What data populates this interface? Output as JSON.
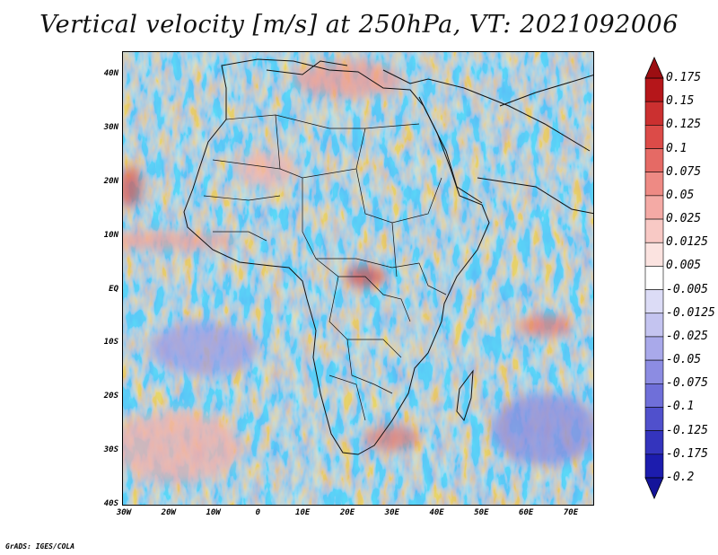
{
  "title": "Vertical velocity [m/s] at 250hPa, VT: 2021092006",
  "credit": "GrADS: IGES/COLA",
  "map": {
    "lat_labels": [
      "40N",
      "30N",
      "20N",
      "10N",
      "EQ",
      "10S",
      "20S",
      "30S",
      "40S"
    ],
    "lon_labels": [
      "30W",
      "20W",
      "10W",
      "0",
      "10E",
      "20E",
      "30E",
      "40E",
      "50E",
      "60E",
      "70E"
    ]
  },
  "colorbar": {
    "labels": [
      "0.175",
      "0.15",
      "0.125",
      "0.1",
      "0.075",
      "0.05",
      "0.025",
      "0.0125",
      "0.005",
      "-0.005",
      "-0.0125",
      "-0.025",
      "-0.05",
      "-0.075",
      "-0.1",
      "-0.125",
      "-0.175",
      "-0.2"
    ],
    "colors": [
      "#b5161a",
      "#cb3030",
      "#dc4b48",
      "#e56a65",
      "#ee8a84",
      "#f4aaa5",
      "#f8c9c5",
      "#fbe3e0",
      "#ffffff",
      "#dcdcf6",
      "#c4c4f0",
      "#a9a9ea",
      "#8c8ce2",
      "#6f6fd9",
      "#5050cc",
      "#3434bd",
      "#1c1cae"
    ],
    "arrow_top_color": "#9c0e12",
    "arrow_bottom_color": "#14149a"
  },
  "chart_data": {
    "type": "heatmap",
    "title": "Vertical velocity [m/s] at 250hPa, VT: 2021092006",
    "variable": "Vertical velocity",
    "units": "m/s",
    "level": "250hPa",
    "valid_time": "2021092006",
    "lon_range": [
      -30,
      75
    ],
    "lat_range": [
      -40,
      45
    ],
    "lon_ticks": [
      "30W",
      "20W",
      "10W",
      "0",
      "10E",
      "20E",
      "30E",
      "40E",
      "50E",
      "60E",
      "70E"
    ],
    "lat_ticks": [
      "40N",
      "30N",
      "20N",
      "10N",
      "EQ",
      "10S",
      "20S",
      "30S",
      "40S"
    ],
    "contour_levels": [
      0.175,
      0.15,
      0.125,
      0.1,
      0.075,
      0.05,
      0.025,
      0.0125,
      0.005,
      -0.005,
      -0.0125,
      -0.025,
      -0.05,
      -0.075,
      -0.1,
      -0.125,
      -0.175,
      -0.2
    ],
    "legend": "right"
  }
}
